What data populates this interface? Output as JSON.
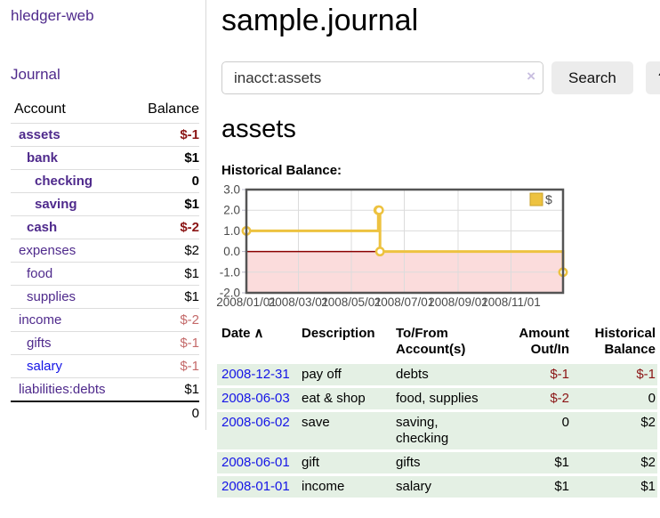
{
  "sidebar": {
    "app_link": "hledger-web",
    "journal_link": "Journal",
    "accounts_header": {
      "account": "Account",
      "balance": "Balance"
    },
    "accounts": [
      {
        "name": "assets",
        "level": 0,
        "balance": "$-1",
        "bold": true,
        "balance_style": "neg-strong"
      },
      {
        "name": "bank",
        "level": 1,
        "balance": "$1",
        "bold": true
      },
      {
        "name": "checking",
        "level": 2,
        "balance": "0",
        "bold": true
      },
      {
        "name": "saving",
        "level": 2,
        "balance": "$1",
        "bold": true
      },
      {
        "name": "cash",
        "level": 1,
        "balance": "$-2",
        "bold": true,
        "balance_style": "neg-strong"
      },
      {
        "name": "expenses",
        "level": 0,
        "balance": "$2"
      },
      {
        "name": "food",
        "level": 1,
        "balance": "$1"
      },
      {
        "name": "supplies",
        "level": 1,
        "balance": "$1"
      },
      {
        "name": "income",
        "level": 0,
        "balance": "$-2",
        "balance_style": "neg-soft"
      },
      {
        "name": "gifts",
        "level": 1,
        "balance": "$-1",
        "balance_style": "neg-soft"
      },
      {
        "name": "salary",
        "level": 1,
        "balance": "$-1",
        "balance_style": "neg-soft",
        "link_style": "blue"
      },
      {
        "name": "liabilities:debts",
        "level": 0,
        "balance": "$1"
      }
    ],
    "total": "0"
  },
  "header": {
    "title": "sample.journal"
  },
  "search": {
    "query": "inacct:assets",
    "clear_icon": "×",
    "button": "Search",
    "help_button": "?"
  },
  "account_page": {
    "heading": "assets",
    "chart_label": "Historical Balance:"
  },
  "chart_data": {
    "type": "line",
    "step": true,
    "title": "Historical Balance",
    "series": [
      {
        "name": "$",
        "points": [
          [
            "2008-01-01",
            1
          ],
          [
            "2008-06-01",
            2
          ],
          [
            "2008-06-02",
            2
          ],
          [
            "2008-06-03",
            0
          ],
          [
            "2008-12-31",
            -1
          ]
        ]
      }
    ],
    "xlim": [
      "2008-01-01",
      "2008-12-31"
    ],
    "ylim": [
      -2,
      3
    ],
    "x_ticks": [
      "2008/01/01",
      "2008/03/01",
      "2008/05/01",
      "2008/07/01",
      "2008/09/01",
      "2008/11/01"
    ],
    "y_ticks": [
      3,
      2,
      1,
      0,
      -1,
      -2
    ],
    "legend": "$",
    "legend_position": "top-right",
    "grid": true,
    "colors": {
      "line": "#EDC240",
      "marker_fill": "#ffffff",
      "negative_region": "#fbdcdc",
      "zero_line": "#8b0000",
      "border": "#545454",
      "grid": "#dcdcdc",
      "axis_tick": "#b9b9c9",
      "tick_label": "#4a4a4a"
    }
  },
  "register": {
    "sort_icon": "∧",
    "columns": [
      {
        "label": "Date",
        "sorted": true,
        "align": "left"
      },
      {
        "label": "Description",
        "align": "left"
      },
      {
        "label": "To/From Account(s)",
        "align": "left"
      },
      {
        "label": "Amount Out/In",
        "align": "right"
      },
      {
        "label": "Historical Balance",
        "align": "right"
      }
    ],
    "rows": [
      {
        "date": "2008-12-31",
        "description": "pay off",
        "accounts": "debts",
        "amount": "$-1",
        "amount_negative": true,
        "balance": "$-1",
        "balance_negative": true
      },
      {
        "date": "2008-06-03",
        "description": "eat & shop",
        "accounts": "food, supplies",
        "amount": "$-2",
        "amount_negative": true,
        "balance": "0",
        "balance_negative": false
      },
      {
        "date": "2008-06-02",
        "description": "save",
        "accounts": "saving,\nchecking",
        "amount": "0",
        "amount_negative": false,
        "balance": "$2",
        "balance_negative": false
      },
      {
        "date": "2008-06-01",
        "description": "gift",
        "accounts": "gifts",
        "amount": "$1",
        "amount_negative": false,
        "balance": "$2",
        "balance_negative": false
      },
      {
        "date": "2008-01-01",
        "description": "income",
        "accounts": "salary",
        "amount": "$1",
        "amount_negative": false,
        "balance": "$1",
        "balance_negative": false
      }
    ]
  },
  "colors": {
    "link_purple": "#4f2a8c",
    "link_blue": "#1515e6",
    "negative_strong": "#8b1515",
    "negative_soft": "#c46a6a",
    "row_green": "#e4f0e4",
    "button_gray": "#ececec",
    "input_border": "#cccccc",
    "clear_icon": "#c9bfe0"
  }
}
